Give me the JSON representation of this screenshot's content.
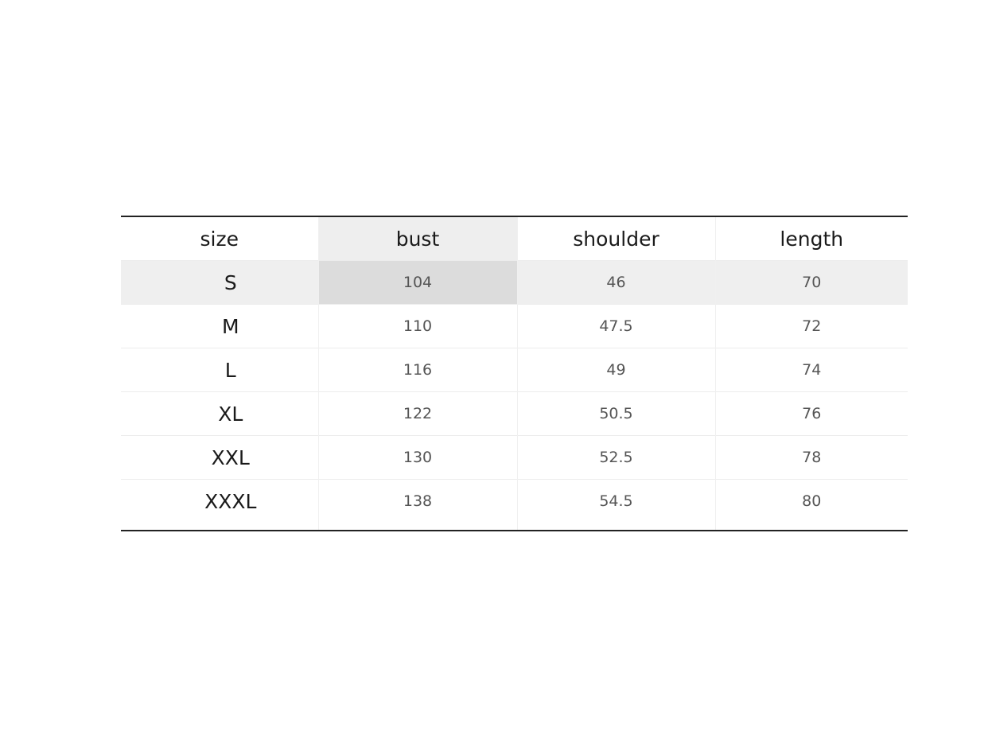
{
  "table": {
    "header": [
      "size",
      "bust",
      "shoulder",
      "length"
    ],
    "rows": [
      [
        "S",
        "104",
        "46",
        "70"
      ],
      [
        "M",
        "110",
        "47.5",
        "72"
      ],
      [
        "L",
        "116",
        "49",
        "74"
      ],
      [
        "XL",
        "122",
        "50.5",
        "76"
      ],
      [
        "XXL",
        "130",
        "52.5",
        "78"
      ],
      [
        "XXXL",
        "138",
        "54.5",
        "80"
      ]
    ]
  }
}
